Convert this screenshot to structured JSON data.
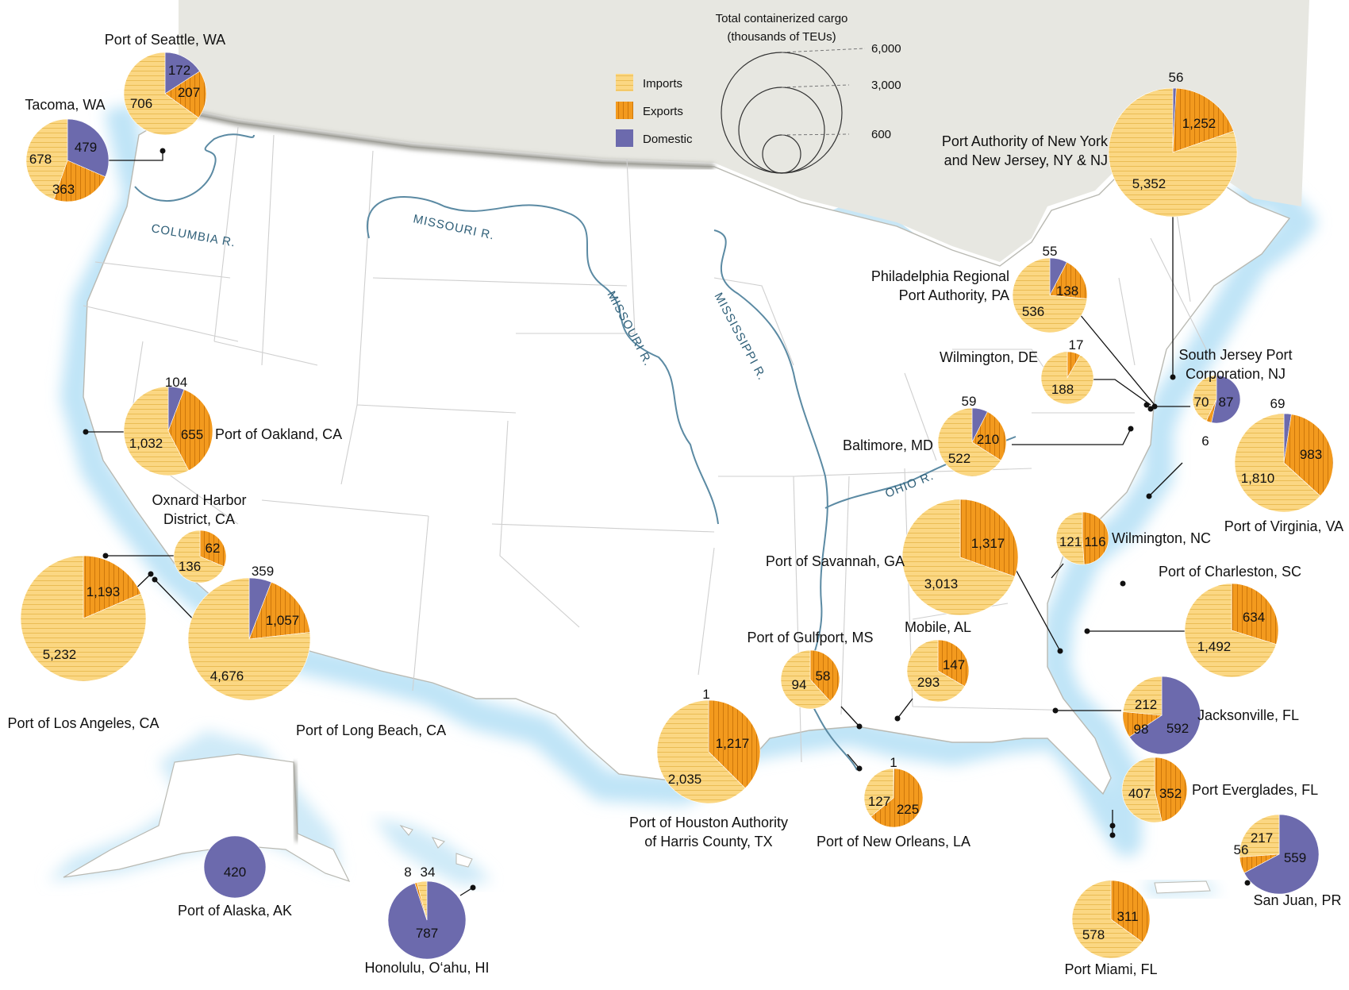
{
  "legend": {
    "title_line1": "Total containerized cargo",
    "title_line2": "(thousands of TEUs)",
    "size_ticks": [
      "6,000",
      "3,000",
      "600"
    ],
    "categories": [
      {
        "label": "Imports",
        "color": "#fbd783"
      },
      {
        "label": "Exports",
        "color": "#f39a1e"
      },
      {
        "label": "Domestic",
        "color": "#6c6aad"
      }
    ]
  },
  "rivers": [
    "COLUMBIA R.",
    "MISSOURI R.",
    "MISSOURI R.",
    "MISSISSIPPI R.",
    "OHIO R."
  ],
  "ports": [
    {
      "id": "seattle",
      "name": [
        "Port of Seattle, WA"
      ],
      "imports": 706,
      "exports": 207,
      "domestic": 172,
      "labels": [
        "706",
        "207",
        "172"
      ]
    },
    {
      "id": "tacoma",
      "name": [
        "Tacoma, WA"
      ],
      "imports": 678,
      "exports": 363,
      "domestic": 479,
      "labels": [
        "678",
        "363",
        "479"
      ]
    },
    {
      "id": "oakland",
      "name": [
        "Port of Oakland, CA"
      ],
      "imports": 1032,
      "exports": 655,
      "domestic": 104,
      "labels": [
        "1,032",
        "655",
        "104"
      ]
    },
    {
      "id": "oxnard",
      "name": [
        "Oxnard Harbor",
        "District, CA"
      ],
      "imports": 136,
      "exports": 62,
      "domestic": 0,
      "labels": [
        "136",
        "62",
        ""
      ]
    },
    {
      "id": "losangeles",
      "name": [
        "Port of Los Angeles, CA"
      ],
      "imports": 5232,
      "exports": 1193,
      "domestic": 0,
      "labels": [
        "5,232",
        "1,193",
        ""
      ]
    },
    {
      "id": "longbeach",
      "name": [
        "Port of Long Beach, CA"
      ],
      "imports": 4676,
      "exports": 1057,
      "domestic": 359,
      "labels": [
        "4,676",
        "1,057",
        "359"
      ]
    },
    {
      "id": "alaska",
      "name": [
        "Port of Alaska, AK"
      ],
      "imports": 0,
      "exports": 0,
      "domestic": 420,
      "labels": [
        "",
        "",
        "420"
      ]
    },
    {
      "id": "honolulu",
      "name": [
        "Honolulu, O‘ahu, HI"
      ],
      "imports": 34,
      "exports": 8,
      "domestic": 787,
      "labels": [
        "34",
        "8",
        "787"
      ]
    },
    {
      "id": "houston",
      "name": [
        "Port of Houston Authority",
        "of Harris County, TX"
      ],
      "imports": 2035,
      "exports": 1217,
      "domestic": 1,
      "labels": [
        "2,035",
        "1,217",
        "1"
      ]
    },
    {
      "id": "gulfport",
      "name": [
        "Port of Gulfport, MS"
      ],
      "imports": 94,
      "exports": 58,
      "domestic": 0,
      "labels": [
        "94",
        "58",
        ""
      ]
    },
    {
      "id": "mobile",
      "name": [
        "Mobile, AL"
      ],
      "imports": 293,
      "exports": 147,
      "domestic": 0,
      "labels": [
        "293",
        "147",
        ""
      ]
    },
    {
      "id": "neworleans",
      "name": [
        "Port of New Orleans, LA"
      ],
      "imports": 127,
      "exports": 225,
      "domestic": 1,
      "labels": [
        "127",
        "225",
        "1"
      ]
    },
    {
      "id": "savannah",
      "name": [
        "Port of Savannah, GA"
      ],
      "imports": 3013,
      "exports": 1317,
      "domestic": 0,
      "labels": [
        "3,013",
        "1,317",
        ""
      ]
    },
    {
      "id": "charleston",
      "name": [
        "Port of Charleston, SC"
      ],
      "imports": 1492,
      "exports": 634,
      "domestic": 0,
      "labels": [
        "1,492",
        "634",
        ""
      ]
    },
    {
      "id": "wilmingtonnc",
      "name": [
        "Wilmington, NC"
      ],
      "imports": 121,
      "exports": 116,
      "domestic": 0,
      "labels": [
        "121",
        "116",
        ""
      ]
    },
    {
      "id": "jacksonville",
      "name": [
        "Jacksonville, FL"
      ],
      "imports": 212,
      "exports": 98,
      "domestic": 592,
      "labels": [
        "212",
        "98",
        "592"
      ]
    },
    {
      "id": "everglades",
      "name": [
        "Port Everglades, FL"
      ],
      "imports": 407,
      "exports": 352,
      "domestic": 0,
      "labels": [
        "407",
        "352",
        ""
      ]
    },
    {
      "id": "miami",
      "name": [
        "Port Miami, FL"
      ],
      "imports": 578,
      "exports": 311,
      "domestic": 0,
      "labels": [
        "578",
        "311",
        ""
      ]
    },
    {
      "id": "sanjuan",
      "name": [
        "San Juan, PR"
      ],
      "imports": 217,
      "exports": 56,
      "domestic": 559,
      "labels": [
        "217",
        "56",
        "559"
      ]
    },
    {
      "id": "virginia",
      "name": [
        "Port of Virginia, VA"
      ],
      "imports": 1810,
      "exports": 983,
      "domestic": 69,
      "labels": [
        "1,810",
        "983",
        "69"
      ]
    },
    {
      "id": "baltimore",
      "name": [
        "Baltimore, MD"
      ],
      "imports": 522,
      "exports": 210,
      "domestic": 59,
      "labels": [
        "522",
        "210",
        "59"
      ]
    },
    {
      "id": "wilmingtonde",
      "name": [
        "Wilmington, DE"
      ],
      "imports": 188,
      "exports": 17,
      "domestic": 0,
      "labels": [
        "188",
        "17",
        ""
      ]
    },
    {
      "id": "southjersey",
      "name": [
        "South Jersey Port",
        "Corporation, NJ"
      ],
      "imports": 70,
      "exports": 6,
      "domestic": 87,
      "labels": [
        "70",
        "6",
        "87"
      ]
    },
    {
      "id": "philadelphia",
      "name": [
        "Philadelphia Regional",
        "Port Authority, PA"
      ],
      "imports": 536,
      "exports": 138,
      "domestic": 55,
      "labels": [
        "536",
        "138",
        "55"
      ]
    },
    {
      "id": "nynj",
      "name": [
        "Port Authority of New York",
        "and New Jersey, NY & NJ"
      ],
      "imports": 5352,
      "exports": 1252,
      "domestic": 56,
      "labels": [
        "5,352",
        "1,252",
        "56"
      ]
    }
  ]
}
